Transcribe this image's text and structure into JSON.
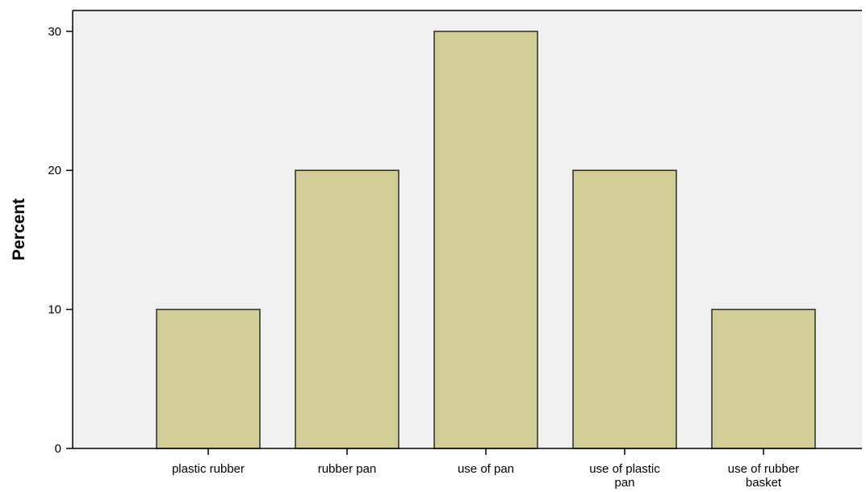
{
  "chart_data": {
    "type": "bar",
    "categories": [
      "plastic rubber",
      "rubber pan",
      "use of pan",
      "use of plastic pan",
      "use of rubber basket"
    ],
    "category_label_lines": [
      [
        "plastic rubber"
      ],
      [
        "rubber pan"
      ],
      [
        "use of pan"
      ],
      [
        "use of plastic",
        "pan"
      ],
      [
        "use of rubber",
        "basket"
      ]
    ],
    "values": [
      10,
      20,
      30,
      20,
      10
    ],
    "xlabel": "",
    "ylabel": "Percent",
    "ylim": [
      0,
      31.5
    ],
    "yticks": [
      0,
      10,
      20,
      30
    ],
    "grid": false,
    "colors": {
      "bar_fill": "#d3ce98",
      "bar_stroke": "#2a2a2a",
      "plot_background": "#f0f0f0",
      "axis": "#000000"
    }
  }
}
